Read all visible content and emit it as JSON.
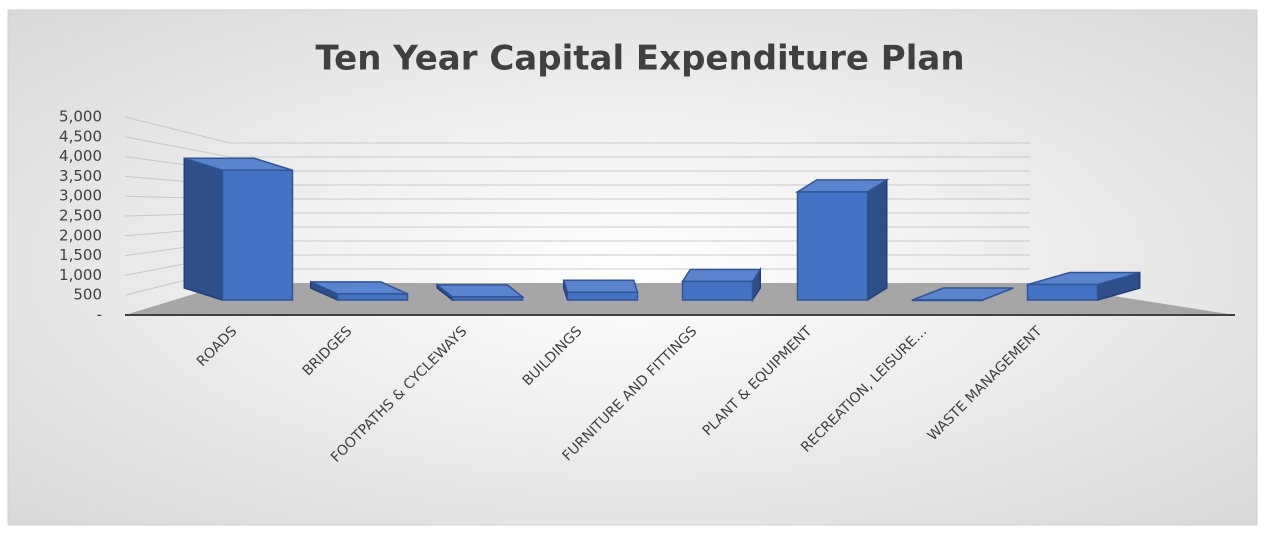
{
  "chart_data": {
    "type": "bar",
    "title": "Ten Year Capital Expenditure Plan",
    "categories": [
      "ROADS",
      "BRIDGES",
      "FOOTPATHS & CYCLEWAYS",
      "BUILDINGS",
      "FURNITURE AND FITTINGS",
      "PLANT & EQUIPMENT",
      "RECREATION, LEISURE…",
      "WASTE MANAGEMENT"
    ],
    "values": [
      4200,
      200,
      100,
      250,
      600,
      3500,
      0,
      500
    ],
    "color": "#4472c4",
    "ylim": [
      0,
      5000
    ],
    "yticks": [
      {
        "value": 0,
        "label": "-"
      },
      500,
      {
        "value": 1000,
        "label": "1,000"
      },
      {
        "value": 1500,
        "label": "1,500"
      },
      {
        "value": 2000,
        "label": "2,000"
      },
      {
        "value": 2500,
        "label": "2,500"
      },
      {
        "value": 3000,
        "label": "3,000"
      },
      {
        "value": 3500,
        "label": "3,500"
      },
      {
        "value": 4000,
        "label": "4,000"
      },
      {
        "value": 4500,
        "label": "4,500"
      },
      {
        "value": 5000,
        "label": "5,000"
      }
    ],
    "grid": true
  }
}
